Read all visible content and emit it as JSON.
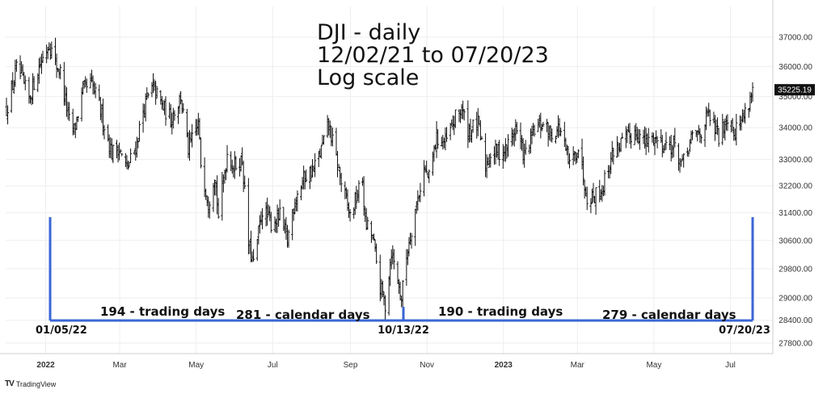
{
  "chart_data": {
    "type": "ohlc",
    "title_lines": [
      "DJI - daily",
      "12/02/21 to 07/20/23",
      "Log scale"
    ],
    "y_scale": "log",
    "ylim": [
      27500,
      37300
    ],
    "y_ticks": [
      27800,
      28400,
      29000,
      29800,
      30600,
      31400,
      32200,
      33000,
      34000,
      35000,
      36000,
      37000
    ],
    "y_tick_labels": [
      "27800.00",
      "28400.00",
      "29000.00",
      "29800.00",
      "30600.00",
      "31400.00",
      "32200.00",
      "33000.00",
      "34000.00",
      "35000.00",
      "36000.00",
      "37000.00"
    ],
    "last_price_label": "35225.19",
    "x_tick_labels": [
      "2022",
      "Mar",
      "May",
      "Jul",
      "Sep",
      "Nov",
      "2023",
      "Mar",
      "May",
      "Jul"
    ],
    "x_bold_labels": [
      "2022",
      "2023"
    ],
    "price_path": [
      [
        "2021-12-02",
        34600
      ],
      [
        "2021-12-06",
        35200
      ],
      [
        "2021-12-10",
        35900
      ],
      [
        "2021-12-14",
        35600
      ],
      [
        "2021-12-20",
        34900
      ],
      [
        "2021-12-27",
        35900
      ],
      [
        "2022-01-05",
        36800
      ],
      [
        "2022-01-10",
        36100
      ],
      [
        "2022-01-14",
        35800
      ],
      [
        "2022-01-21",
        34200
      ],
      [
        "2022-01-25",
        33900
      ],
      [
        "2022-02-01",
        35200
      ],
      [
        "2022-02-08",
        35400
      ],
      [
        "2022-02-14",
        34700
      ],
      [
        "2022-02-18",
        34100
      ],
      [
        "2022-02-24",
        33200
      ],
      [
        "2022-03-01",
        33400
      ],
      [
        "2022-03-08",
        32700
      ],
      [
        "2022-03-15",
        33400
      ],
      [
        "2022-03-22",
        34700
      ],
      [
        "2022-03-29",
        35300
      ],
      [
        "2022-04-05",
        34700
      ],
      [
        "2022-04-12",
        34300
      ],
      [
        "2022-04-20",
        35000
      ],
      [
        "2022-04-26",
        33300
      ],
      [
        "2022-05-04",
        34100
      ],
      [
        "2022-05-06",
        32900
      ],
      [
        "2022-05-12",
        31700
      ],
      [
        "2022-05-17",
        32600
      ],
      [
        "2022-05-20",
        31300
      ],
      [
        "2022-05-27",
        33200
      ],
      [
        "2022-06-01",
        32800
      ],
      [
        "2022-06-08",
        33000
      ],
      [
        "2022-06-13",
        30500
      ],
      [
        "2022-06-17",
        29900
      ],
      [
        "2022-06-24",
        31500
      ],
      [
        "2022-07-01",
        31100
      ],
      [
        "2022-07-08",
        31300
      ],
      [
        "2022-07-14",
        30600
      ],
      [
        "2022-07-20",
        31800
      ],
      [
        "2022-07-28",
        32500
      ],
      [
        "2022-08-04",
        32700
      ],
      [
        "2022-08-10",
        33300
      ],
      [
        "2022-08-16",
        34100
      ],
      [
        "2022-08-22",
        33000
      ],
      [
        "2022-08-26",
        32300
      ],
      [
        "2022-09-02",
        31300
      ],
      [
        "2022-09-12",
        32400
      ],
      [
        "2022-09-14",
        31100
      ],
      [
        "2022-09-20",
        30700
      ],
      [
        "2022-09-26",
        29300
      ],
      [
        "2022-09-30",
        28800
      ],
      [
        "2022-10-05",
        30300
      ],
      [
        "2022-10-13",
        29000
      ],
      [
        "2022-10-18",
        30400
      ],
      [
        "2022-10-24",
        31500
      ],
      [
        "2022-10-31",
        32700
      ],
      [
        "2022-11-04",
        32400
      ],
      [
        "2022-11-10",
        33700
      ],
      [
        "2022-11-17",
        33500
      ],
      [
        "2022-11-25",
        34300
      ],
      [
        "2022-11-30",
        34600
      ],
      [
        "2022-12-05",
        33900
      ],
      [
        "2022-12-13",
        34100
      ],
      [
        "2022-12-19",
        32800
      ],
      [
        "2022-12-23",
        33200
      ],
      [
        "2023-01-04",
        33300
      ],
      [
        "2023-01-12",
        34000
      ],
      [
        "2023-01-19",
        33100
      ],
      [
        "2023-01-27",
        33900
      ],
      [
        "2023-02-02",
        34100
      ],
      [
        "2023-02-10",
        33800
      ],
      [
        "2023-02-16",
        34000
      ],
      [
        "2023-02-24",
        32800
      ],
      [
        "2023-03-03",
        33400
      ],
      [
        "2023-03-10",
        31900
      ],
      [
        "2023-03-15",
        31900
      ],
      [
        "2023-03-22",
        32100
      ],
      [
        "2023-03-31",
        33300
      ],
      [
        "2023-04-06",
        33500
      ],
      [
        "2023-04-18",
        33900
      ],
      [
        "2023-04-25",
        33500
      ],
      [
        "2023-05-02",
        33700
      ],
      [
        "2023-05-10",
        33500
      ],
      [
        "2023-05-19",
        33400
      ],
      [
        "2023-05-25",
        32800
      ],
      [
        "2023-06-02",
        33700
      ],
      [
        "2023-06-09",
        33900
      ],
      [
        "2023-06-15",
        34400
      ],
      [
        "2023-06-23",
        33700
      ],
      [
        "2023-06-30",
        34400
      ],
      [
        "2023-07-06",
        33900
      ],
      [
        "2023-07-13",
        34400
      ],
      [
        "2023-07-20",
        35225
      ]
    ],
    "annotations": {
      "left_text_1": "194 - trading days",
      "left_text_2": "281 - calendar days",
      "right_text_1": "190 - trading days",
      "right_text_2": "279 - calendar days",
      "date_1": "01/05/22",
      "date_2": "10/13/22",
      "date_3": "07/20/23",
      "bracket_color": "#3a66d6"
    },
    "grid": true,
    "legend": "none"
  },
  "brand": {
    "logo": "TV",
    "name": "TradingView"
  },
  "colors": {
    "bars": "#111111",
    "grid": "#eeeeee",
    "axis_text": "#333333",
    "price_tag_bg": "#111111",
    "price_tag_text": "#ffffff"
  }
}
